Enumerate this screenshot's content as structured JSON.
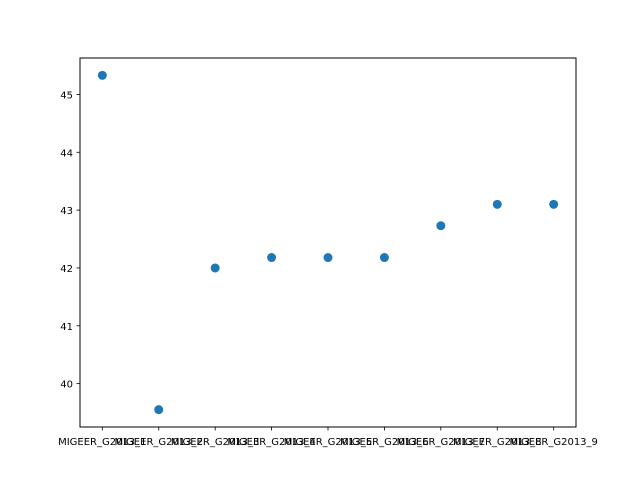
{
  "chart_data": {
    "type": "scatter",
    "title": "",
    "xlabel": "",
    "ylabel": "",
    "categories": [
      "MIGEER_G2013_1",
      "MIGEER_G2013_2",
      "MIGEER_G2013_3",
      "MIGEER_G2013_4",
      "MIGEER_G2013_5",
      "MIGEER_G2013_6",
      "MIGEER_G2013_7",
      "MIGEER_G2013_8",
      "MIGEER_G2013_9"
    ],
    "values": [
      45.33,
      39.55,
      42.0,
      42.18,
      42.18,
      42.18,
      42.73,
      43.1,
      43.1
    ],
    "ylim": [
      39.25,
      45.63
    ],
    "yticks": [
      40,
      41,
      42,
      43,
      44,
      45
    ],
    "grid": false,
    "color": "#1f77b4"
  }
}
